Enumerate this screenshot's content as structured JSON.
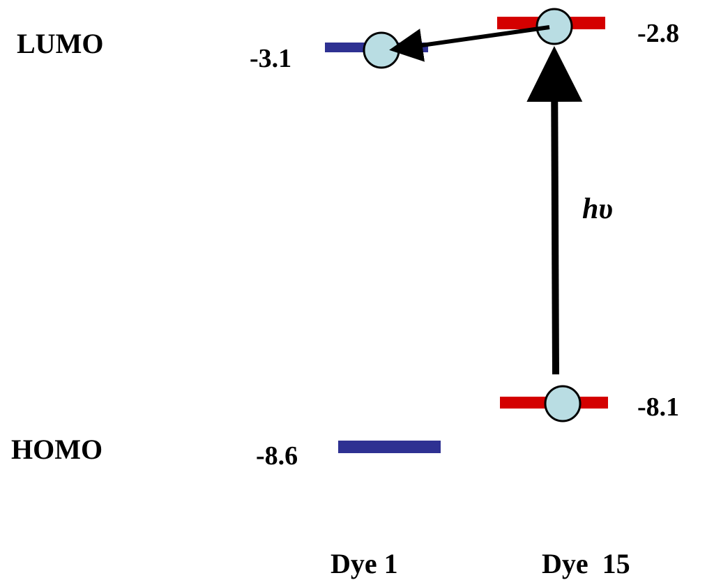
{
  "diagram": {
    "row_labels": {
      "lumo": "LUMO",
      "homo": "HOMO"
    },
    "dyes": [
      {
        "name": "Dye 1",
        "color": "#2e3192",
        "lumo": "-3.1",
        "homo": "-8.6"
      },
      {
        "name": "Dye  15",
        "color": "#d40000",
        "lumo": "-2.8",
        "homo": "-8.1"
      }
    ],
    "excitation_label": "hυ",
    "electron_color": "#b9dde3"
  }
}
